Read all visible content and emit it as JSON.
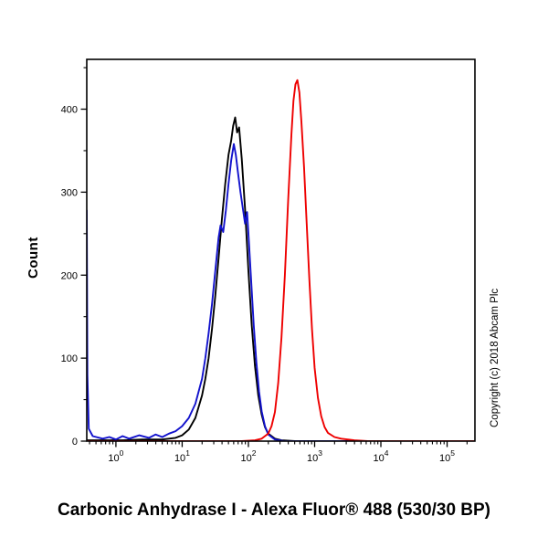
{
  "title": "Carbonic Anhydrase I - Alexa Fluor® 488 (530/30 BP)",
  "copyright": "Copyright (c) 2018 Abcam Plc",
  "chart_data": {
    "type": "line",
    "subtype": "flow-cytometry-histogram",
    "title": "Carbonic Anhydrase I - Alexa Fluor® 488 (530/30 BP)",
    "ylabel": "Count",
    "xlabel": "",
    "x_scale": "log10",
    "xlim_log": [
      -0.44,
      5.42
    ],
    "ylim": [
      0,
      460
    ],
    "grid": false,
    "legend": "none",
    "y_ticks": [
      0,
      100,
      200,
      300,
      400
    ],
    "y_tick_labels": [
      "0",
      "100",
      "200",
      "300",
      "400"
    ],
    "x_ticks": [
      {
        "base": "10",
        "exp": "0",
        "log": 0
      },
      {
        "base": "10",
        "exp": "1",
        "log": 1
      },
      {
        "base": "10",
        "exp": "2",
        "log": 2
      },
      {
        "base": "10",
        "exp": "3",
        "log": 3
      },
      {
        "base": "10",
        "exp": "4",
        "log": 4
      },
      {
        "base": "10",
        "exp": "5",
        "log": 5
      }
    ],
    "series": [
      {
        "name": "black-curve",
        "color": "#000000",
        "points": [
          [
            -0.44,
            1
          ],
          [
            0.1,
            1
          ],
          [
            0.4,
            2
          ],
          [
            0.7,
            2
          ],
          [
            0.9,
            4
          ],
          [
            1.0,
            7
          ],
          [
            1.1,
            14
          ],
          [
            1.2,
            28
          ],
          [
            1.3,
            55
          ],
          [
            1.35,
            75
          ],
          [
            1.4,
            100
          ],
          [
            1.45,
            135
          ],
          [
            1.5,
            175
          ],
          [
            1.55,
            220
          ],
          [
            1.6,
            268
          ],
          [
            1.65,
            310
          ],
          [
            1.7,
            345
          ],
          [
            1.74,
            362
          ],
          [
            1.77,
            380
          ],
          [
            1.8,
            390
          ],
          [
            1.83,
            372
          ],
          [
            1.86,
            378
          ],
          [
            1.9,
            340
          ],
          [
            1.95,
            280
          ],
          [
            2.0,
            205
          ],
          [
            2.05,
            140
          ],
          [
            2.1,
            90
          ],
          [
            2.15,
            55
          ],
          [
            2.2,
            32
          ],
          [
            2.25,
            17
          ],
          [
            2.3,
            9
          ],
          [
            2.4,
            3
          ],
          [
            2.5,
            1
          ],
          [
            2.7,
            0
          ],
          [
            5.42,
            0
          ]
        ]
      },
      {
        "name": "blue-curve",
        "color": "#1212cc",
        "points": [
          [
            -0.44,
            278
          ],
          [
            -0.43,
            80
          ],
          [
            -0.41,
            15
          ],
          [
            -0.35,
            6
          ],
          [
            -0.2,
            3
          ],
          [
            -0.1,
            5
          ],
          [
            0.0,
            2
          ],
          [
            0.1,
            6
          ],
          [
            0.2,
            3
          ],
          [
            0.35,
            7
          ],
          [
            0.5,
            4
          ],
          [
            0.6,
            8
          ],
          [
            0.7,
            5
          ],
          [
            0.8,
            9
          ],
          [
            0.9,
            12
          ],
          [
            1.0,
            18
          ],
          [
            1.1,
            28
          ],
          [
            1.2,
            45
          ],
          [
            1.3,
            75
          ],
          [
            1.35,
            100
          ],
          [
            1.4,
            130
          ],
          [
            1.45,
            165
          ],
          [
            1.5,
            205
          ],
          [
            1.55,
            245
          ],
          [
            1.58,
            260
          ],
          [
            1.62,
            252
          ],
          [
            1.66,
            278
          ],
          [
            1.7,
            310
          ],
          [
            1.74,
            338
          ],
          [
            1.78,
            358
          ],
          [
            1.81,
            345
          ],
          [
            1.84,
            325
          ],
          [
            1.88,
            300
          ],
          [
            1.92,
            278
          ],
          [
            1.95,
            262
          ],
          [
            1.98,
            276
          ],
          [
            2.0,
            250
          ],
          [
            2.04,
            195
          ],
          [
            2.08,
            140
          ],
          [
            2.12,
            95
          ],
          [
            2.16,
            60
          ],
          [
            2.2,
            36
          ],
          [
            2.25,
            18
          ],
          [
            2.3,
            8
          ],
          [
            2.4,
            2
          ],
          [
            2.55,
            0
          ],
          [
            5.42,
            0
          ]
        ]
      },
      {
        "name": "red-curve",
        "color": "#ee0000",
        "points": [
          [
            -0.44,
            0
          ],
          [
            1.9,
            0
          ],
          [
            2.1,
            1
          ],
          [
            2.2,
            3
          ],
          [
            2.3,
            9
          ],
          [
            2.35,
            18
          ],
          [
            2.4,
            35
          ],
          [
            2.45,
            70
          ],
          [
            2.5,
            125
          ],
          [
            2.55,
            200
          ],
          [
            2.6,
            290
          ],
          [
            2.65,
            370
          ],
          [
            2.68,
            410
          ],
          [
            2.71,
            430
          ],
          [
            2.74,
            435
          ],
          [
            2.77,
            420
          ],
          [
            2.8,
            385
          ],
          [
            2.84,
            330
          ],
          [
            2.88,
            262
          ],
          [
            2.92,
            195
          ],
          [
            2.96,
            135
          ],
          [
            3.0,
            88
          ],
          [
            3.05,
            52
          ],
          [
            3.1,
            30
          ],
          [
            3.15,
            17
          ],
          [
            3.2,
            10
          ],
          [
            3.3,
            5
          ],
          [
            3.4,
            3
          ],
          [
            3.5,
            2
          ],
          [
            3.6,
            1
          ],
          [
            3.8,
            0
          ],
          [
            5.42,
            0
          ]
        ]
      }
    ]
  }
}
